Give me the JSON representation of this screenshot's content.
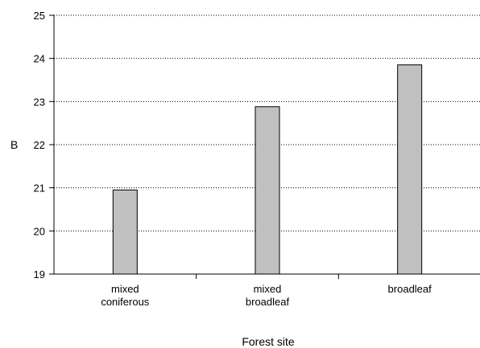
{
  "chart_data": {
    "type": "bar",
    "title": "",
    "xlabel": "Forest site",
    "ylabel": "B",
    "categories": [
      [
        "mixed",
        "coniferous"
      ],
      [
        "mixed",
        "broadleaf"
      ],
      [
        "broadleaf"
      ]
    ],
    "values": [
      20.95,
      22.88,
      23.85
    ],
    "ylim": [
      19,
      25
    ],
    "yticks": [
      19,
      20,
      21,
      22,
      23,
      24,
      25
    ],
    "grid": "dotted horizontal",
    "legend": "none",
    "colors": {
      "bar_fill": "#c0c0c0",
      "bar_stroke": "#000000",
      "axis": "#000000",
      "grid": "#000000"
    }
  }
}
